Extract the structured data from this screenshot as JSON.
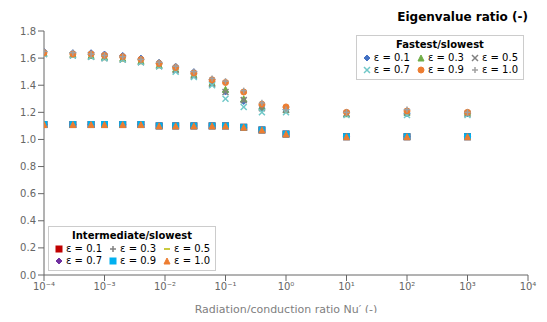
{
  "chart_data": {
    "type": "scatter",
    "title": "Eigenvalue ratio (-)",
    "xlabel": "Radiation/conduction ratio Nu′ (-)",
    "log": "x",
    "grid": false,
    "xlim": [
      0.0001,
      10000
    ],
    "xticks": [
      {
        "value": 0.0001,
        "label": "10⁻⁴"
      },
      {
        "value": 0.001,
        "label": "10⁻³"
      },
      {
        "value": 0.01,
        "label": "10⁻²"
      },
      {
        "value": 0.1,
        "label": "10⁻¹"
      },
      {
        "value": 1,
        "label": "10⁰"
      },
      {
        "value": 10,
        "label": "10¹"
      },
      {
        "value": 100,
        "label": "10²"
      },
      {
        "value": 1000,
        "label": "10³"
      },
      {
        "value": 10000,
        "label": "10⁴"
      }
    ],
    "ylim": [
      0,
      1.8
    ],
    "yticks": [
      {
        "value": 0,
        "label": "0.0"
      },
      0.2,
      0.4,
      0.6,
      0.8,
      {
        "value": 1,
        "label": "1.0"
      },
      1.2,
      1.4,
      1.6,
      1.8
    ],
    "series_groups": [
      {
        "title": "Fastest/slowest",
        "legend": "upper right",
        "x": [
          0.0001,
          0.0003,
          0.0006,
          0.001,
          0.002,
          0.004,
          0.008,
          0.015,
          0.03,
          0.06,
          0.1,
          0.2,
          0.4,
          1,
          10,
          100,
          1000
        ],
        "series": [
          {
            "name": "ε = 0.1",
            "color": "#4472c4",
            "marker": "diamond",
            "values": [
              1.65,
              1.64,
              1.64,
              1.63,
              1.62,
              1.6,
              1.57,
              1.54,
              1.5,
              1.44,
              1.35,
              1.28,
              1.23,
              1.22,
              1.2,
              1.19,
              1.19
            ]
          },
          {
            "name": "ε = 0.3",
            "color": "#70ad47",
            "marker": "triangle",
            "values": [
              1.64,
              1.63,
              1.62,
              1.61,
              1.6,
              1.58,
              1.55,
              1.52,
              1.48,
              1.42,
              1.37,
              1.3,
              1.24,
              1.22,
              1.19,
              1.2,
              1.2
            ]
          },
          {
            "name": "ε = 0.5",
            "color": "#808080",
            "marker": "x",
            "values": [
              1.63,
              1.62,
              1.61,
              1.6,
              1.59,
              1.57,
              1.54,
              1.51,
              1.47,
              1.41,
              1.35,
              1.29,
              1.23,
              1.22,
              1.19,
              1.2,
              1.19
            ]
          },
          {
            "name": "ε = 0.7",
            "color": "#70c8c8",
            "marker": "x",
            "values": [
              1.63,
              1.62,
              1.61,
              1.6,
              1.59,
              1.57,
              1.54,
              1.5,
              1.46,
              1.4,
              1.3,
              1.24,
              1.2,
              1.2,
              1.18,
              1.18,
              1.18
            ]
          },
          {
            "name": "ε = 0.9",
            "color": "#ed7d31",
            "marker": "circle",
            "values": [
              1.64,
              1.63,
              1.63,
              1.62,
              1.61,
              1.59,
              1.56,
              1.53,
              1.49,
              1.44,
              1.42,
              1.35,
              1.26,
              1.24,
              1.2,
              1.21,
              1.2
            ]
          },
          {
            "name": "ε = 1.0",
            "color": "#a0a0a0",
            "marker": "plus",
            "values": [
              1.65,
              1.64,
              1.63,
              1.62,
              1.61,
              1.59,
              1.57,
              1.54,
              1.5,
              1.45,
              1.43,
              1.36,
              1.27,
              1.22,
              1.2,
              1.22,
              1.2
            ]
          }
        ]
      },
      {
        "title": "Intermediate/slowest",
        "legend": "lower left",
        "x": [
          0.0001,
          0.0003,
          0.0006,
          0.001,
          0.002,
          0.004,
          0.008,
          0.015,
          0.03,
          0.06,
          0.1,
          0.2,
          0.4,
          1,
          10,
          100,
          1000
        ],
        "series": [
          {
            "name": "ε = 0.1",
            "color": "#c00000",
            "marker": "square",
            "values": [
              1.11,
              1.11,
              1.11,
              1.11,
              1.11,
              1.11,
              1.1,
              1.1,
              1.1,
              1.1,
              1.1,
              1.09,
              1.07,
              1.04,
              1.02,
              1.02,
              1.02
            ]
          },
          {
            "name": "ε = 0.3",
            "color": "#808080",
            "marker": "plus",
            "values": [
              1.11,
              1.11,
              1.11,
              1.11,
              1.11,
              1.11,
              1.1,
              1.1,
              1.1,
              1.1,
              1.1,
              1.09,
              1.07,
              1.04,
              1.02,
              1.02,
              1.02
            ]
          },
          {
            "name": "ε = 0.5",
            "color": "#b8b800",
            "marker": "hline",
            "values": [
              1.11,
              1.11,
              1.11,
              1.11,
              1.11,
              1.11,
              1.1,
              1.1,
              1.1,
              1.1,
              1.1,
              1.09,
              1.07,
              1.04,
              1.02,
              1.02,
              1.02
            ]
          },
          {
            "name": "ε = 0.7",
            "color": "#7030a0",
            "marker": "diamond",
            "values": [
              1.11,
              1.11,
              1.11,
              1.11,
              1.11,
              1.11,
              1.1,
              1.1,
              1.1,
              1.1,
              1.1,
              1.09,
              1.07,
              1.04,
              1.02,
              1.02,
              1.02
            ]
          },
          {
            "name": "ε = 0.9",
            "color": "#00b0f0",
            "marker": "square",
            "values": [
              1.11,
              1.11,
              1.11,
              1.11,
              1.11,
              1.11,
              1.1,
              1.1,
              1.1,
              1.1,
              1.1,
              1.09,
              1.07,
              1.04,
              1.02,
              1.02,
              1.02
            ]
          },
          {
            "name": "ε = 1.0",
            "color": "#ed7d31",
            "marker": "triangle",
            "values": [
              1.11,
              1.11,
              1.11,
              1.11,
              1.11,
              1.11,
              1.1,
              1.1,
              1.1,
              1.1,
              1.1,
              1.09,
              1.07,
              1.04,
              1.02,
              1.02,
              1.02
            ]
          }
        ]
      }
    ]
  }
}
